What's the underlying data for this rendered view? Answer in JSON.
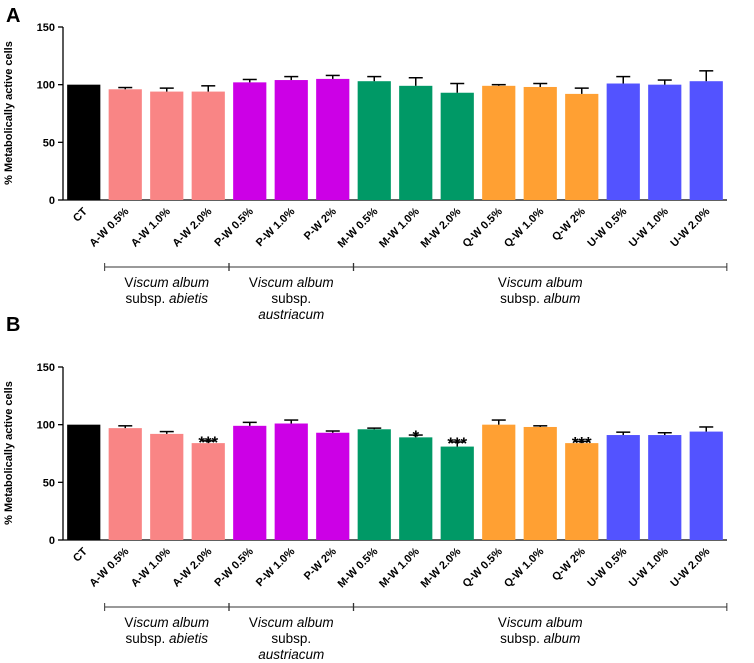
{
  "chart_data": [
    {
      "panel": "A",
      "type": "bar",
      "ylabel": "% Metabolically active cells",
      "ylim": [
        0,
        150
      ],
      "yticks": [
        0,
        50,
        100,
        150
      ],
      "categories": [
        "CT",
        "A-W 0.5%",
        "A-W 1.0%",
        "A-W 2.0%",
        "P-W 0.5%",
        "P-W 1.0%",
        "P-W 2%",
        "M-W 0.5%",
        "M-W 1.0%",
        "M-W 2.0%",
        "Q-W 0.5%",
        "Q-W 1.0%",
        "Q-W 2%",
        "U-W 0.5%",
        "U-W 1.0%",
        "U-W 2.0%"
      ],
      "values": [
        100,
        96,
        94,
        94,
        102,
        104,
        105,
        103,
        99,
        93,
        99,
        98,
        92,
        101,
        100,
        103
      ],
      "errors": [
        0,
        1.5,
        3,
        5,
        2.5,
        3,
        3,
        4,
        7,
        8,
        1,
        3,
        5,
        6,
        4,
        9
      ],
      "annotations": [
        "",
        "",
        "",
        "",
        "",
        "",
        "",
        "",
        "",
        "",
        "",
        "",
        "",
        "",
        "",
        ""
      ],
      "colors": [
        "#000000",
        "#f98585",
        "#f98585",
        "#f98585",
        "#cc00e6",
        "#cc00e6",
        "#cc00e6",
        "#009966",
        "#009966",
        "#009966",
        "#ffa033",
        "#ffa033",
        "#ffa033",
        "#5353ff",
        "#5353ff",
        "#5353ff"
      ],
      "groups": [
        {
          "line1": "Viscum album",
          "line2": "subsp.",
          "line2_italic": "abietis",
          "line3": "",
          "start": 1,
          "end": 3
        },
        {
          "line1": "Viscum album",
          "line2": "subsp.",
          "line2_italic": "",
          "line3": "austriacum",
          "start": 4,
          "end": 6
        },
        {
          "line1": "Viscum album",
          "line2": "subsp.",
          "line2_italic": "album",
          "line3": "",
          "start": 7,
          "end": 15
        }
      ]
    },
    {
      "panel": "B",
      "type": "bar",
      "ylabel": "% Metabolically active cells",
      "ylim": [
        0,
        150
      ],
      "yticks": [
        0,
        50,
        100,
        150
      ],
      "categories": [
        "CT",
        "A-W 0.5%",
        "A-W 1.0%",
        "A-W 2.0%",
        "P-W 0.5%",
        "P-W 1.0%",
        "P-W 2%",
        "M-W 0.5%",
        "M-W 1.0%",
        "M-W 2.0%",
        "Q-W 0.5%",
        "Q-W 1.0%",
        "Q-W 2%",
        "U-W 0.5%",
        "U-W 1.0%",
        "U-W 2.0%"
      ],
      "values": [
        100,
        97,
        92,
        84,
        99,
        101,
        93,
        96,
        89,
        81,
        100,
        98,
        84,
        91,
        91,
        94
      ],
      "errors": [
        0,
        2,
        2,
        2,
        3,
        3,
        1.5,
        1,
        2,
        4,
        4,
        1,
        1.5,
        2.5,
        2,
        4
      ],
      "annotations": [
        "",
        "",
        "",
        "***",
        "",
        "",
        "",
        "",
        "*",
        "***",
        "",
        "",
        "***",
        "",
        "",
        ""
      ],
      "colors": [
        "#000000",
        "#f98585",
        "#f98585",
        "#f98585",
        "#cc00e6",
        "#cc00e6",
        "#cc00e6",
        "#009966",
        "#009966",
        "#009966",
        "#ffa033",
        "#ffa033",
        "#ffa033",
        "#5353ff",
        "#5353ff",
        "#5353ff"
      ],
      "groups": [
        {
          "line1": "Viscum album",
          "line2": "subsp.",
          "line2_italic": "abietis",
          "line3": "",
          "start": 1,
          "end": 3
        },
        {
          "line1": "Viscum album",
          "line2": "subsp.",
          "line2_italic": "",
          "line3": "austriacum",
          "start": 4,
          "end": 6
        },
        {
          "line1": "Viscum album",
          "line2": "subsp.",
          "line2_italic": "album",
          "line3": "",
          "start": 7,
          "end": 15
        }
      ]
    }
  ]
}
